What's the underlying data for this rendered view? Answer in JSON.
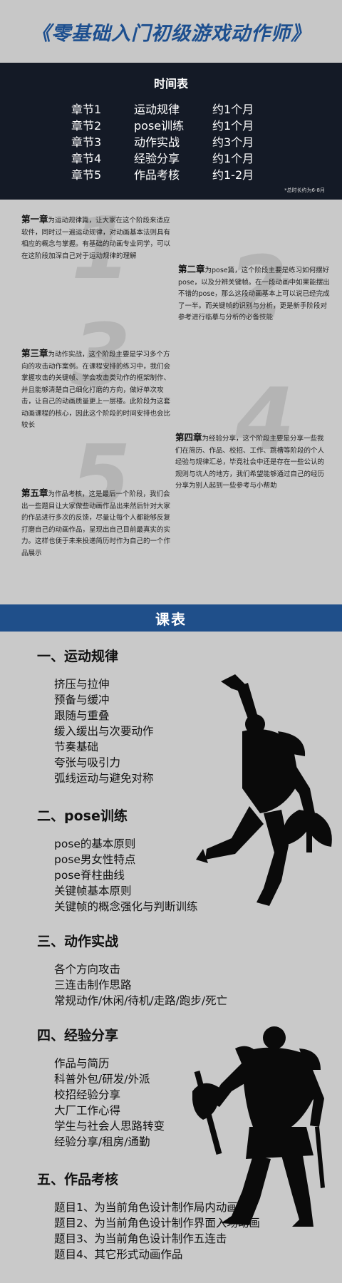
{
  "header": {
    "title": "《零基础入门初级游戏动作师》"
  },
  "schedule": {
    "title": "时间表",
    "rows": [
      {
        "chapter": "章节1",
        "name": "运动规律",
        "duration": "约1个月"
      },
      {
        "chapter": "章节2",
        "name": "pose训练",
        "duration": "约1个月"
      },
      {
        "chapter": "章节3",
        "name": "动作实战",
        "duration": "约3个月"
      },
      {
        "chapter": "章节4",
        "name": "经验分享",
        "duration": "约1个月"
      },
      {
        "chapter": "章节5",
        "name": "作品考核",
        "duration": "约1-2月"
      }
    ],
    "note": "*总时长约为6-8月"
  },
  "chapters": [
    {
      "label": "第一章",
      "text": "为运动规律篇，让大家在这个阶段来适应软件，同时过一遍运动规律，对动画基本法则具有相应的概念与掌握。有基础的动画专业同学，可以在这阶段加深自己对于运动规律的理解"
    },
    {
      "label": "第二章",
      "text": "为pose篇，这个阶段主要是练习如何摆好pose，以及分辨关键帧。在一段动画中如果能摆出不错的pose，那么这段动画基本上可以说已经完成了一半。而关键帧的识别与分析，更是新手阶段对参考进行临摹与分析的必备技能"
    },
    {
      "label": "第三章",
      "text": "为动作实战，这个阶段主要是学习多个方向的攻击动作案例。在课程安排的练习中，我们会掌握攻击的关键帧、学会攻击类动作的框架制作、并且能够清楚自己细化打磨的方向，做好单次攻击，让自己的动画质量更上一层楼。此阶段为这套动画课程的核心，因此这个阶段的时间安排也会比较长"
    },
    {
      "label": "第四章",
      "text": "为经验分享，这个阶段主要是分享一些我们在简历、作品、校招、工作、跳槽等阶段的个人经验与规律汇总，毕竟社会中还是存在一些公认的规则与坑人的地方，我们希望能够通过自己的经历分享为别人起到一些参考与小帮助"
    },
    {
      "label": "第五章",
      "text": "为作品考核，这是最后一个阶段，我们会出一些题目让大家做些动画作品出来然后针对大家的作品进行多次的反馈，尽量让每个人都能够反复打磨自己的动画作品，呈现出自己目前最真实的实力。这样也便于未来投递简历时作为自己的一个作品展示"
    }
  ],
  "course": {
    "title": "课表",
    "sections": [
      {
        "heading": "一、运动规律",
        "items": [
          "挤压与拉伸",
          "预备与缓冲",
          "跟随与重叠",
          "缓入缓出与次要动作",
          "节奏基础",
          "夸张与吸引力",
          "弧线运动与避免对称"
        ]
      },
      {
        "heading": "二、pose训练",
        "items": [
          "pose的基本原则",
          "pose男女性特点",
          "pose脊柱曲线",
          "关键帧基本原则",
          "关键帧的概念强化与判断训练"
        ]
      },
      {
        "heading": "三、动作实战",
        "items": [
          "各个方向攻击",
          "三连击制作思路",
          "常规动作/休闲/待机/走路/跑步/死亡"
        ]
      },
      {
        "heading": "四、经验分享",
        "items": [
          "作品与简历",
          "科普外包/研发/外派",
          "校招经验分享",
          "大厂工作心得",
          "学生与社会人思路转变",
          "经验分享/租房/通勤"
        ]
      },
      {
        "heading": "五、作品考核",
        "items": [
          "题目1、为当前角色设计制作局内动画",
          "题目2、为当前角色设计制作界面入场动画",
          "题目3、为当前角色设计制作五连击",
          "题目4、其它形式动画作品"
        ]
      }
    ]
  }
}
